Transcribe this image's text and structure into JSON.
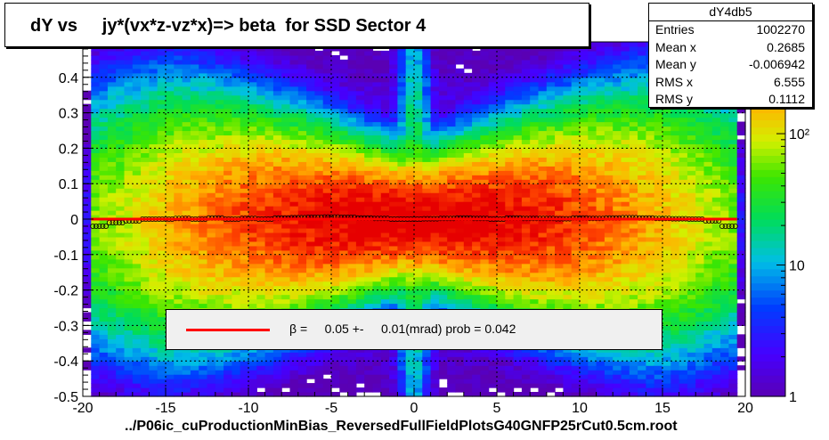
{
  "title": "dY vs     jy*(vx*z-vz*x)=> beta  for SSD Sector 4",
  "footer": "../P06ic_cuProductionMinBias_ReversedFullFieldPlotsG40GNFP25rCut0.5cm.root",
  "stats": {
    "name": "dY4db5",
    "rows": [
      {
        "key": "Entries",
        "value": "1002270"
      },
      {
        "key": "Mean x",
        "value": "0.2685"
      },
      {
        "key": "Mean y",
        "value": "-0.006942"
      },
      {
        "key": "RMS x",
        "value": "6.555"
      },
      {
        "key": "RMS y",
        "value": "0.1112"
      }
    ]
  },
  "legend": {
    "text": "β =     0.05 +-     0.01(mrad) prob = 0.042",
    "line_color": "#ff0000"
  },
  "chart_data": {
    "type": "heatmap",
    "xlim": [
      -20,
      20
    ],
    "ylim": [
      -0.5,
      0.5
    ],
    "x_ticks": [
      -20,
      -15,
      -10,
      -5,
      0,
      5,
      10,
      15,
      20
    ],
    "x_tick_labels": [
      "-20",
      "-15",
      "-10",
      "-5",
      "0",
      "5",
      "10",
      "15",
      "20"
    ],
    "y_ticks": [
      -0.5,
      -0.4,
      -0.3,
      -0.2,
      -0.1,
      0,
      0.1,
      0.2,
      0.3,
      0.4
    ],
    "y_tick_labels": [
      "-0.5",
      "-0.4",
      "-0.3",
      "-0.2",
      "-0.1",
      "0",
      "0.1",
      "0.2",
      "0.3",
      "0.4"
    ],
    "grid": true,
    "colorbar": {
      "scale": "log",
      "range": [
        1,
        500
      ],
      "ticks": [
        1,
        10,
        100
      ],
      "tick_labels": [
        "1",
        "10",
        "10²"
      ]
    },
    "fit_line": {
      "x": [
        -19.5,
        19.5
      ],
      "y": [
        0.0,
        0.0
      ],
      "color": "#ff0000"
    },
    "profile_points": {
      "x": [
        -19,
        -18,
        -17,
        -16,
        -15,
        -14,
        -13,
        -12,
        -11,
        -10,
        -9,
        -8,
        -7,
        -6,
        -5,
        -4,
        -3,
        -2,
        -1,
        0,
        1,
        2,
        3,
        4,
        5,
        6,
        7,
        8,
        9,
        10,
        11,
        12,
        13,
        14,
        15,
        16,
        17,
        18,
        19
      ],
      "y": [
        -0.02,
        -0.01,
        -0.005,
        0,
        0,
        0.002,
        0,
        0.003,
        0,
        0.002,
        0,
        0.003,
        0.004,
        0.005,
        0.006,
        0.005,
        0.003,
        0.002,
        0,
        0,
        0.001,
        0.002,
        0.003,
        0.002,
        0,
        0.003,
        0.002,
        0.002,
        0.001,
        0.003,
        0.002,
        0.003,
        0.004,
        0.003,
        0.002,
        0.001,
        0,
        -0.005,
        -0.02
      ]
    }
  }
}
